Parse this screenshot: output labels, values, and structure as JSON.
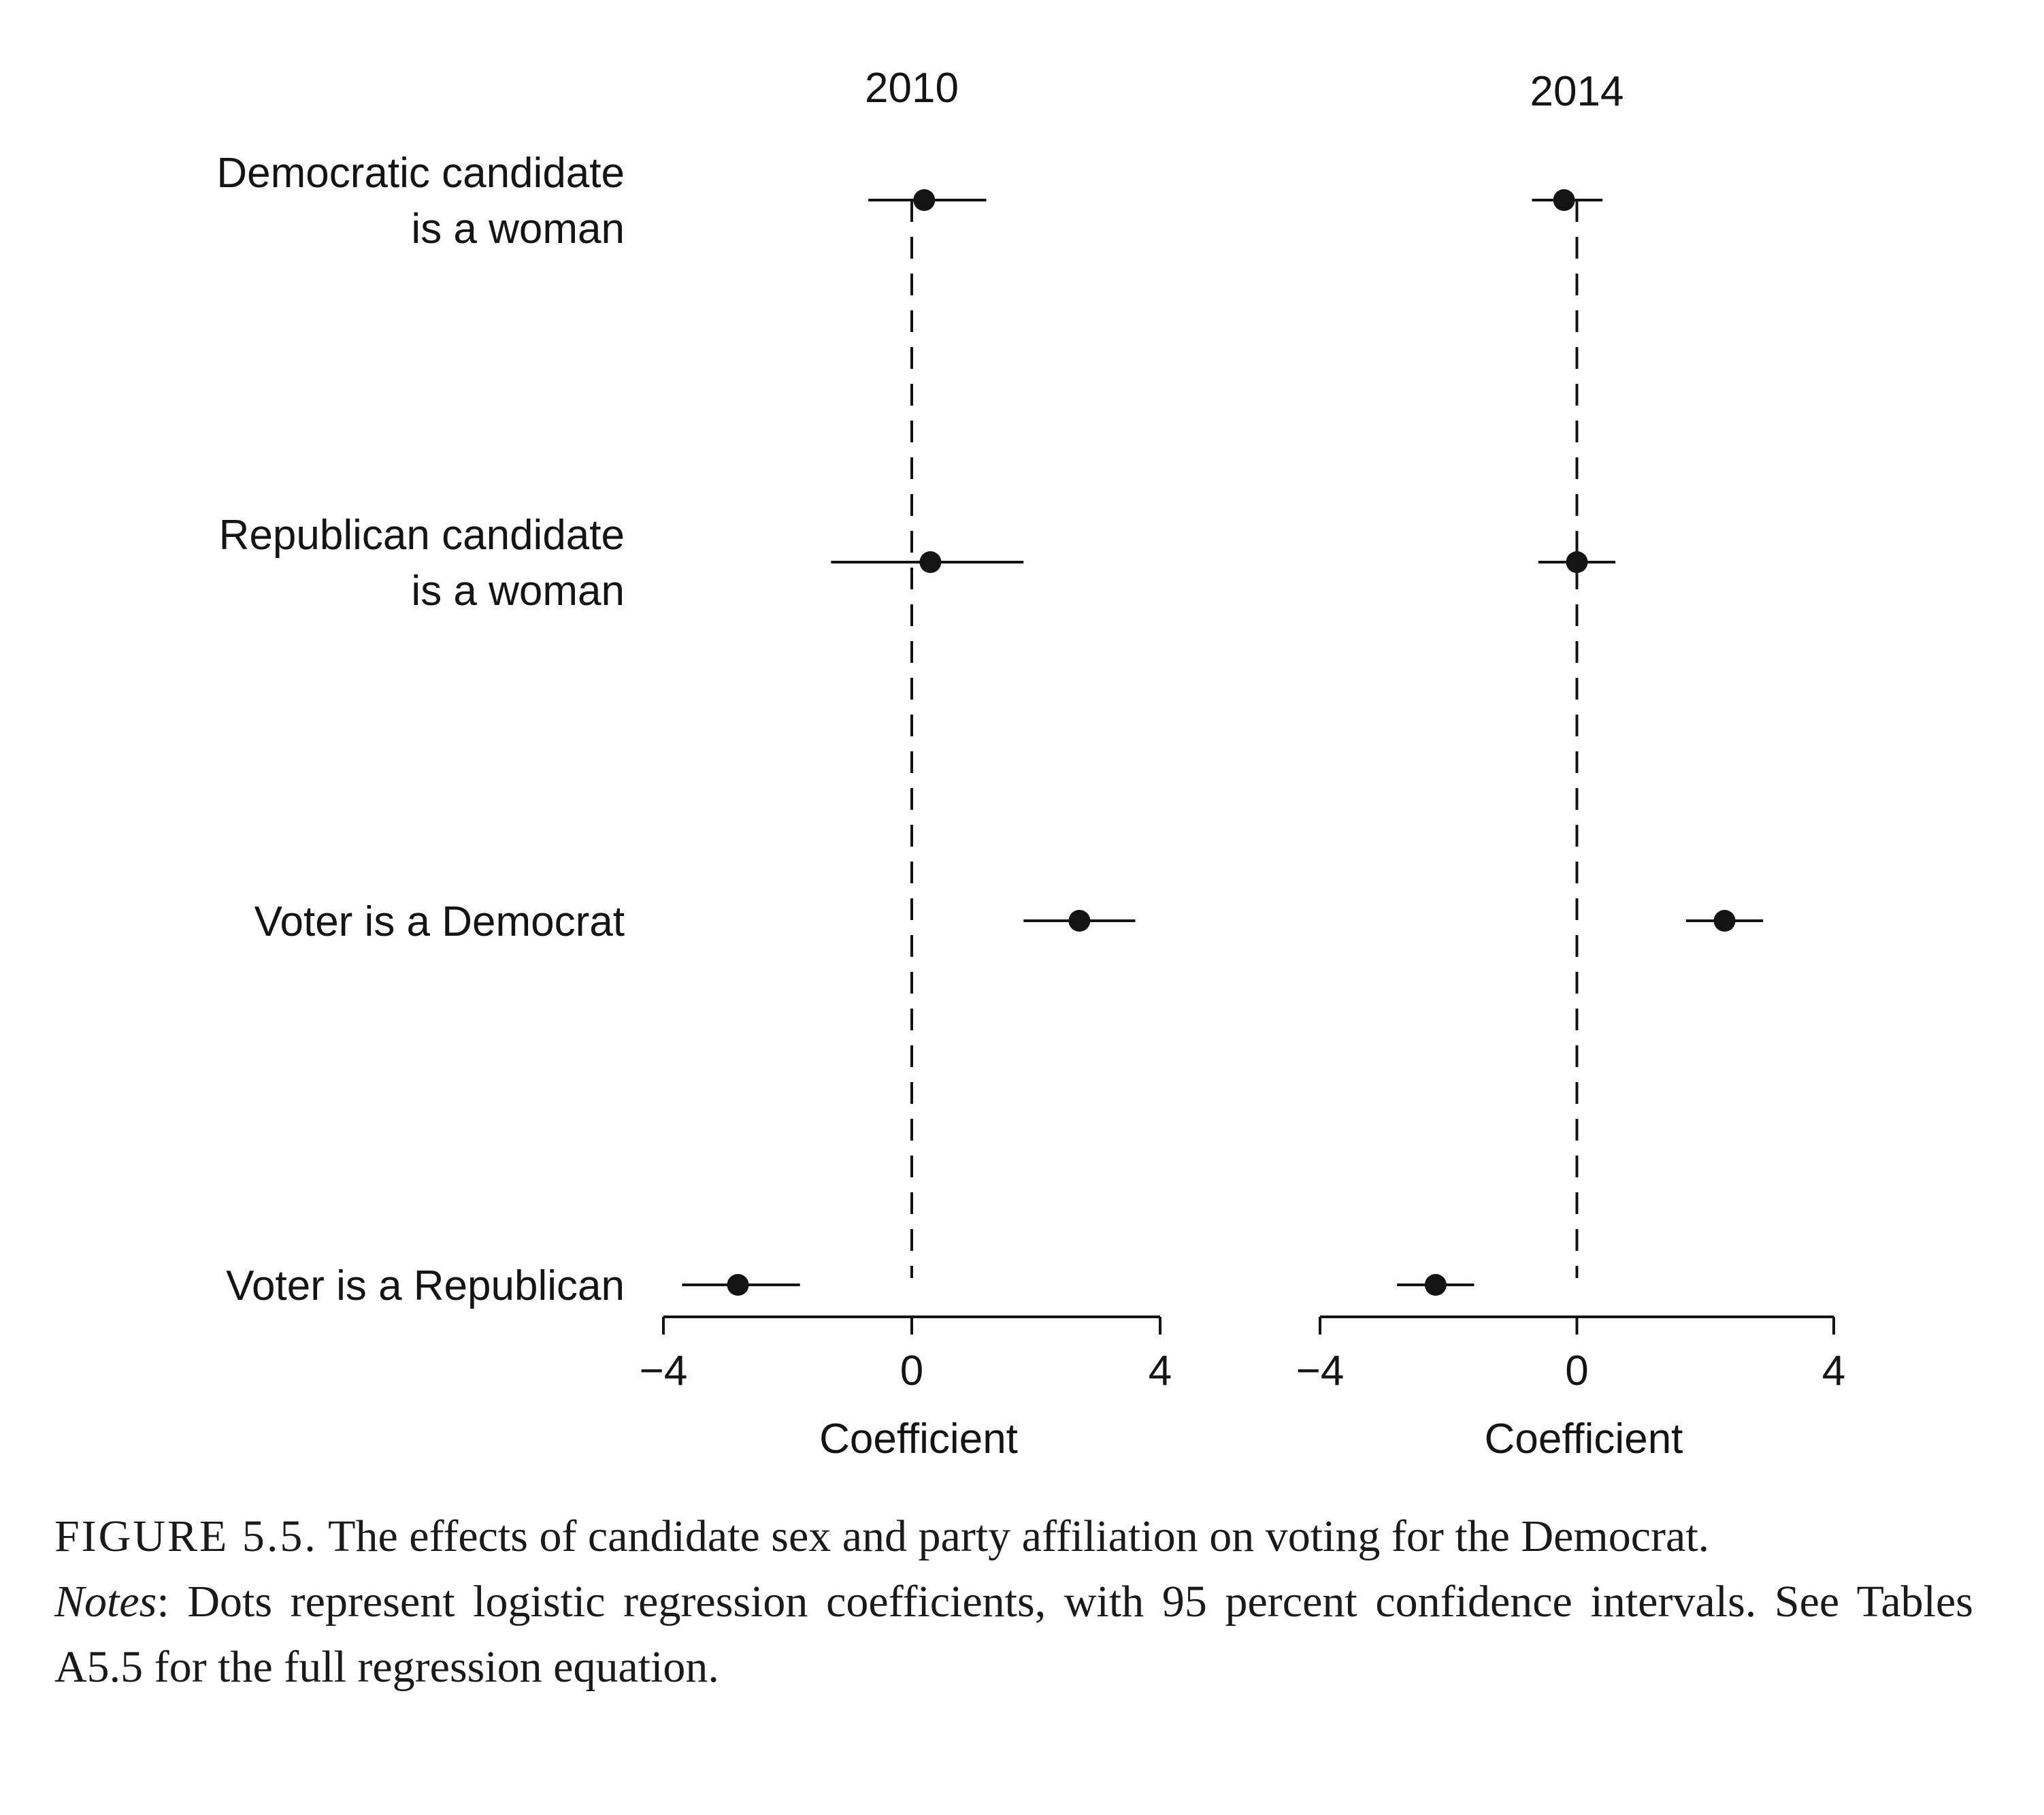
{
  "chart_data": [
    {
      "type": "scatter",
      "subtype": "coefficient-plot-with-error-bars",
      "title": "2010",
      "xlabel": "Coefficient",
      "xlim": [
        -4,
        4
      ],
      "xticks": [
        "−4",
        "0",
        "4"
      ],
      "reference_line": 0,
      "categories": [
        "Democratic candidate is a woman",
        "Republican candidate is a woman",
        "Voter is a Democrat",
        "Voter is a Republican"
      ],
      "points": [
        {
          "label": "Democratic candidate is a woman",
          "estimate": 0.2,
          "ci": [
            -0.7,
            1.2
          ]
        },
        {
          "label": "Republican candidate is a woman",
          "estimate": 0.3,
          "ci": [
            -1.3,
            1.8
          ]
        },
        {
          "label": "Voter is a Democrat",
          "estimate": 2.7,
          "ci": [
            1.8,
            3.6
          ]
        },
        {
          "label": "Voter is a Republican",
          "estimate": -2.8,
          "ci": [
            -3.7,
            -1.8
          ]
        }
      ]
    },
    {
      "type": "scatter",
      "subtype": "coefficient-plot-with-error-bars",
      "title": "2014",
      "xlabel": "Coefficient",
      "xlim": [
        -4,
        4
      ],
      "xticks": [
        "−4",
        "0",
        "4"
      ],
      "reference_line": 0,
      "categories": [
        "Democratic candidate is a woman",
        "Republican candidate is a woman",
        "Voter is a Democrat",
        "Voter is a Republican"
      ],
      "points": [
        {
          "label": "Democratic candidate is a woman",
          "estimate": -0.2,
          "ci": [
            -0.7,
            0.4
          ]
        },
        {
          "label": "Republican candidate is a woman",
          "estimate": 0.0,
          "ci": [
            -0.6,
            0.6
          ]
        },
        {
          "label": "Voter is a Democrat",
          "estimate": 2.3,
          "ci": [
            1.7,
            2.9
          ]
        },
        {
          "label": "Voter is a Republican",
          "estimate": -2.2,
          "ci": [
            -2.8,
            -1.6
          ]
        }
      ]
    }
  ],
  "row_labels": [
    [
      "Democratic candidate",
      "is a woman"
    ],
    [
      "Republican candidate",
      "is a woman"
    ],
    [
      "Voter is a Democrat"
    ],
    [
      "Voter is a Republican"
    ]
  ],
  "caption": {
    "figure_label": "FIGURE 5.5.",
    "title_text": " The effects of candidate sex and party affiliation on voting for the Democrat.",
    "notes_label": "Notes",
    "notes_text": ": Dots represent logistic regression coefficients, with 95 percent confidence intervals. See Tables A5.5 for the full regression equation."
  }
}
